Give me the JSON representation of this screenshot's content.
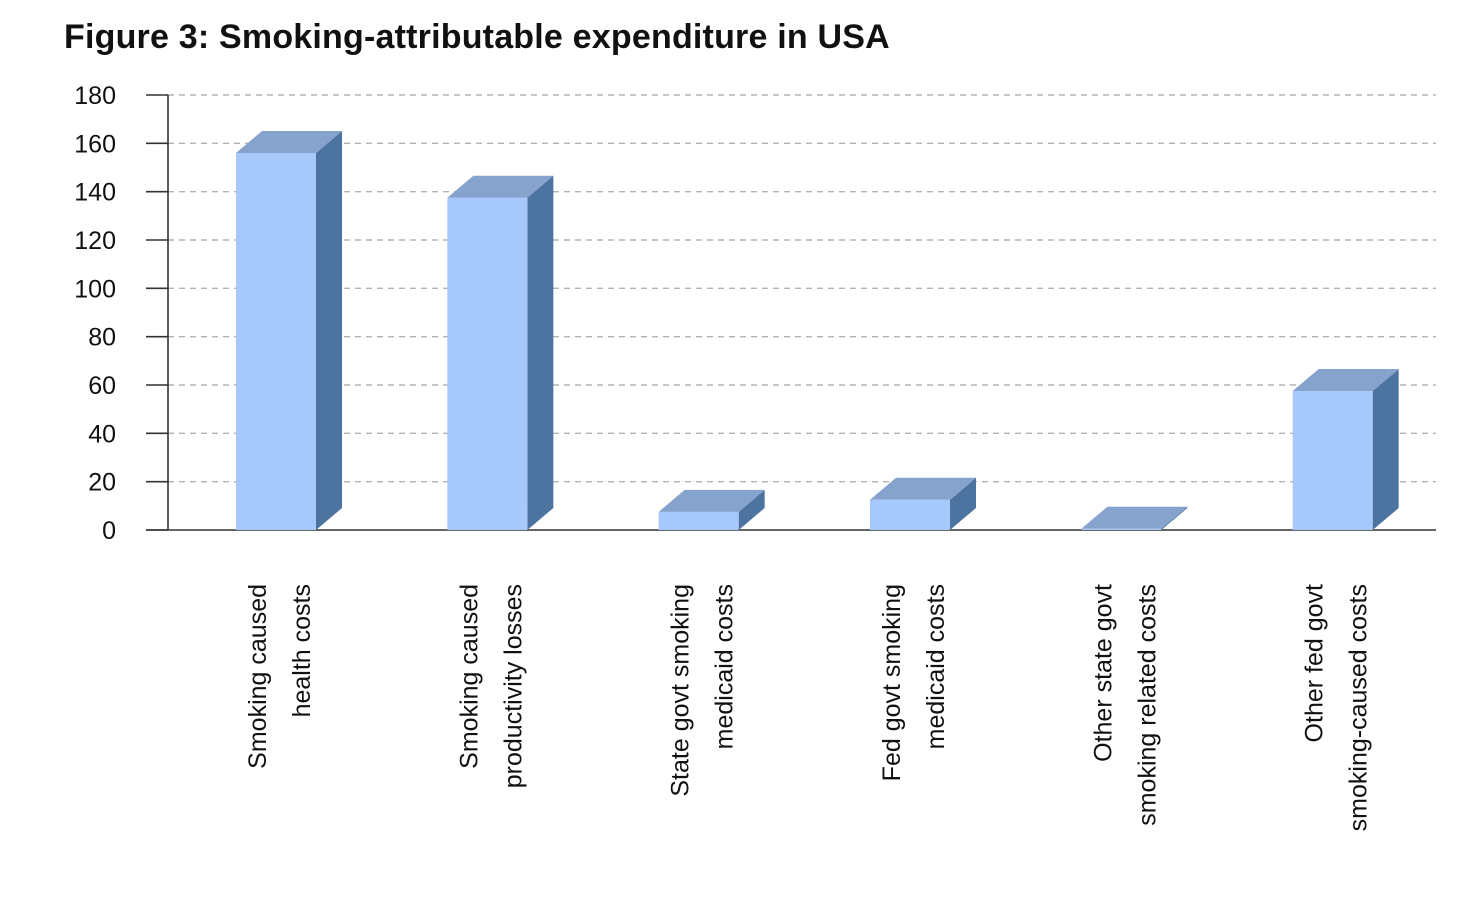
{
  "chart_data": {
    "type": "bar",
    "title": "Figure 3: Smoking-attributable expenditure in USA",
    "categories": [
      [
        "Smoking caused",
        "health costs"
      ],
      [
        "Smoking caused",
        "productivity  losses"
      ],
      [
        "State govt smoking",
        "medicaid costs"
      ],
      [
        "Fed govt smoking",
        "medicaid costs"
      ],
      [
        "Other state govt",
        "smoking related costs"
      ],
      [
        "Other fed govt",
        "smoking-caused costs"
      ]
    ],
    "values": [
      156,
      137.5,
      7.5,
      12.5,
      0.5,
      57.5
    ],
    "yticks": [
      "0",
      "20",
      "40",
      "60",
      "80",
      "100",
      "120",
      "140",
      "160",
      "180"
    ],
    "ylim": [
      0,
      180
    ],
    "xlabel": "",
    "ylabel": "",
    "grid": true,
    "style": "3d-column",
    "colors": {
      "front": "#a7c8fb",
      "top": "#86a3cd",
      "side": "#4d73a0",
      "grid": "#b3b3b3",
      "axis": "#333333"
    }
  }
}
